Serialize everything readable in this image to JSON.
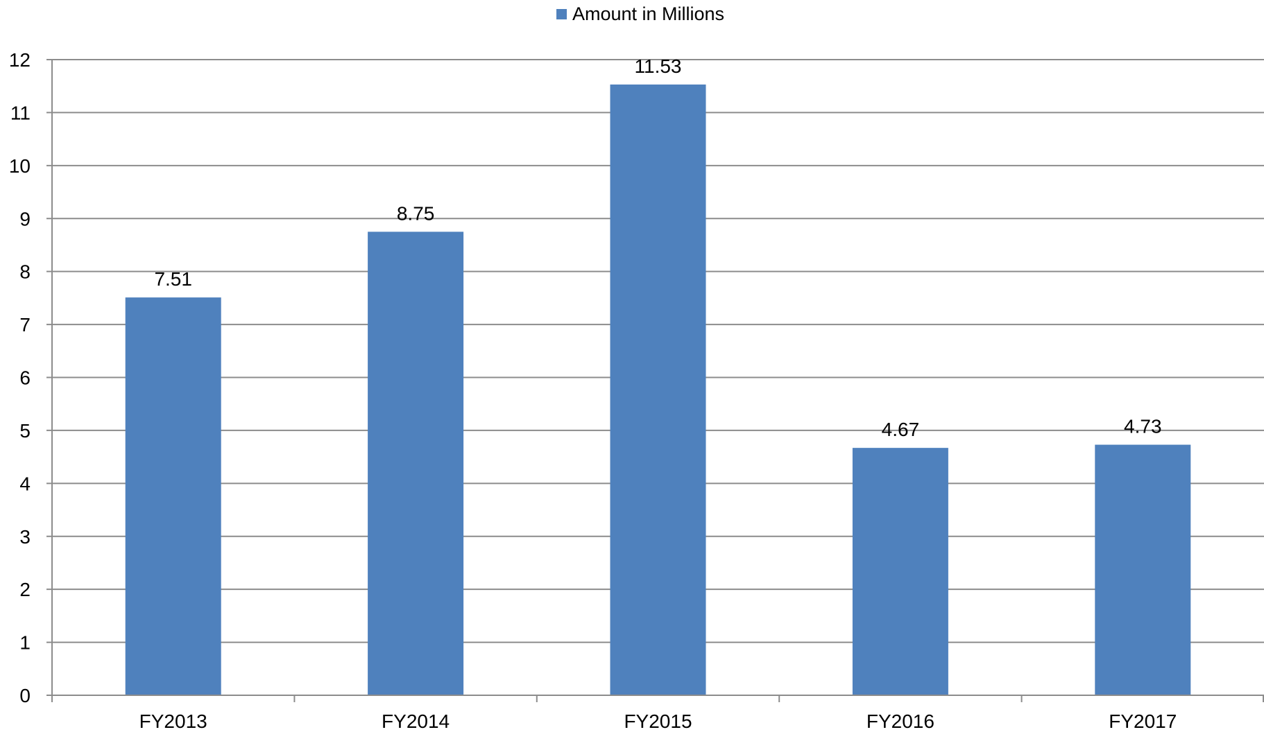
{
  "chart_data": {
    "type": "bar",
    "title": "",
    "xlabel": "",
    "ylabel": "",
    "categories": [
      "FY2013",
      "FY2014",
      "FY2015",
      "FY2016",
      "FY2017"
    ],
    "series": [
      {
        "name": "Amount in Millions",
        "color": "#4F81BD",
        "values": [
          7.51,
          8.75,
          11.53,
          4.67,
          4.73
        ],
        "data_labels": [
          "7.51",
          "8.75",
          "11.53",
          "4.67",
          "4.73"
        ]
      }
    ],
    "ylim": [
      0,
      12
    ],
    "yticks": [
      "0",
      "1",
      "2",
      "3",
      "4",
      "5",
      "6",
      "7",
      "8",
      "9",
      "10",
      "11",
      "12"
    ],
    "grid": true,
    "legend_position": "top-center",
    "colors": {
      "gridline": "#8C8C8C",
      "axis": "#8C8C8C",
      "text": "#000000"
    }
  }
}
